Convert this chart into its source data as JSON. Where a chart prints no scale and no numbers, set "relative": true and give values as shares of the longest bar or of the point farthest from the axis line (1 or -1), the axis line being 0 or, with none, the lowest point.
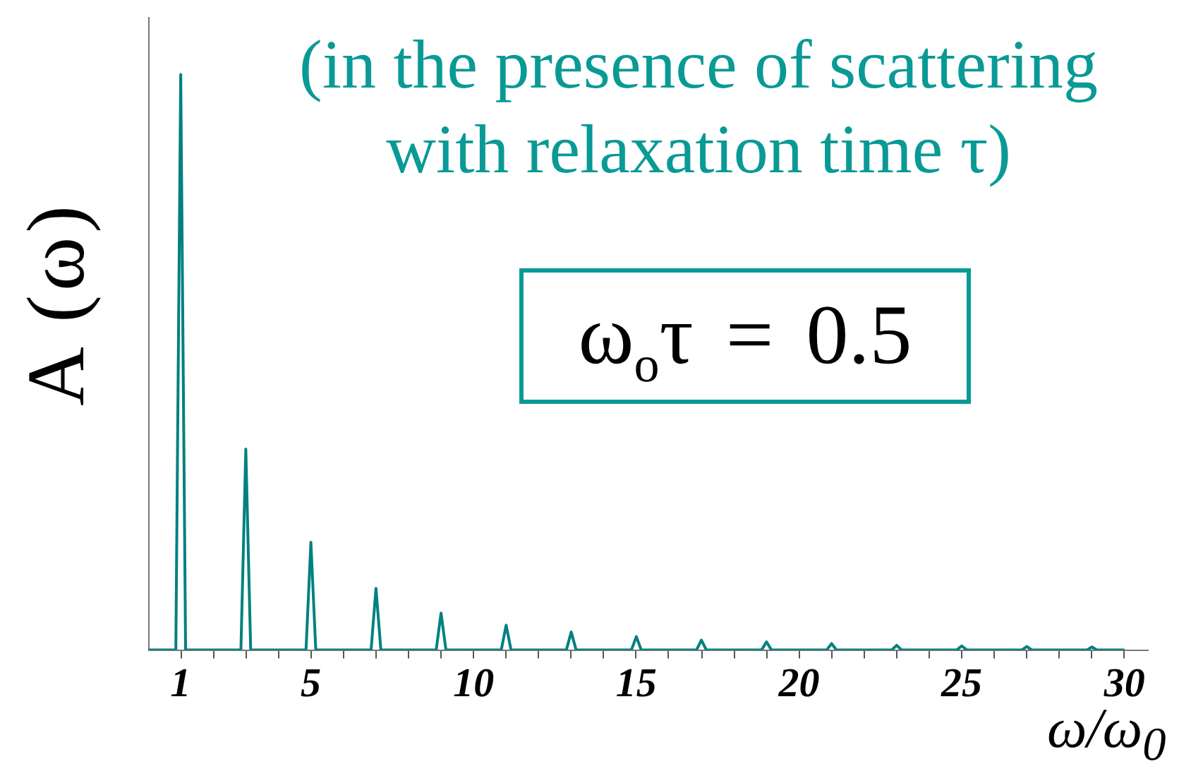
{
  "chart_data": {
    "type": "line",
    "title": "(in the presence of scattering with relaxation time τ)",
    "xlabel": "ω/ω$_{0}$",
    "ylabel": "A (ω)",
    "annotations": [
      "ω$_{o}$τ = 0.5"
    ],
    "x": [
      0,
      0.85,
      1,
      1.15,
      2.85,
      3,
      3.15,
      4.85,
      5,
      5.15,
      6.85,
      7,
      7.15,
      8.85,
      9,
      9.15,
      10.85,
      11,
      11.15,
      12.85,
      13,
      13.15,
      14.85,
      15,
      15.15,
      16.85,
      17,
      17.15,
      18.85,
      19,
      19.15,
      20.85,
      21,
      21.15,
      22.85,
      23,
      23.15,
      24.85,
      25,
      25.15,
      26.85,
      27,
      27.15,
      28.85,
      29,
      29.15,
      30
    ],
    "values": [
      0,
      0,
      1,
      0,
      0,
      0.349,
      0,
      0,
      0.187,
      0,
      0,
      0.107,
      0,
      0,
      0.064,
      0,
      0,
      0.043,
      0,
      0,
      0.031,
      0,
      0,
      0.023,
      0,
      0,
      0.017,
      0,
      0,
      0.014,
      0,
      0,
      0.011,
      0,
      0,
      0.008,
      0,
      0,
      0.007,
      0,
      0,
      0.006,
      0,
      0,
      0.005,
      0,
      0
    ],
    "color": "#008080",
    "relative": true,
    "xlim": [
      0,
      30.7
    ],
    "xticks": [
      1,
      {
        "value": 2,
        "label": null
      },
      {
        "value": 3,
        "label": null
      },
      {
        "value": 4,
        "label": null
      },
      5,
      {
        "value": 6,
        "label": null
      },
      {
        "value": 7,
        "label": null
      },
      {
        "value": 8,
        "label": null
      },
      {
        "value": 9,
        "label": null
      },
      10,
      {
        "value": 11,
        "label": null
      },
      {
        "value": 12,
        "label": null
      },
      {
        "value": 13,
        "label": null
      },
      {
        "value": 14,
        "label": null
      },
      15,
      {
        "value": 16,
        "label": null
      },
      {
        "value": 17,
        "label": null
      },
      {
        "value": 18,
        "label": null
      },
      {
        "value": 19,
        "label": null
      },
      20,
      {
        "value": 21,
        "label": null
      },
      {
        "value": 22,
        "label": null
      },
      {
        "value": 23,
        "label": null
      },
      {
        "value": 24,
        "label": null
      },
      25,
      {
        "value": 26,
        "label": null
      },
      {
        "value": 27,
        "label": null
      },
      {
        "value": 28,
        "label": null
      },
      {
        "value": 29,
        "label": null
      },
      30
    ],
    "marker": "none",
    "grid": false,
    "legend": false
  }
}
